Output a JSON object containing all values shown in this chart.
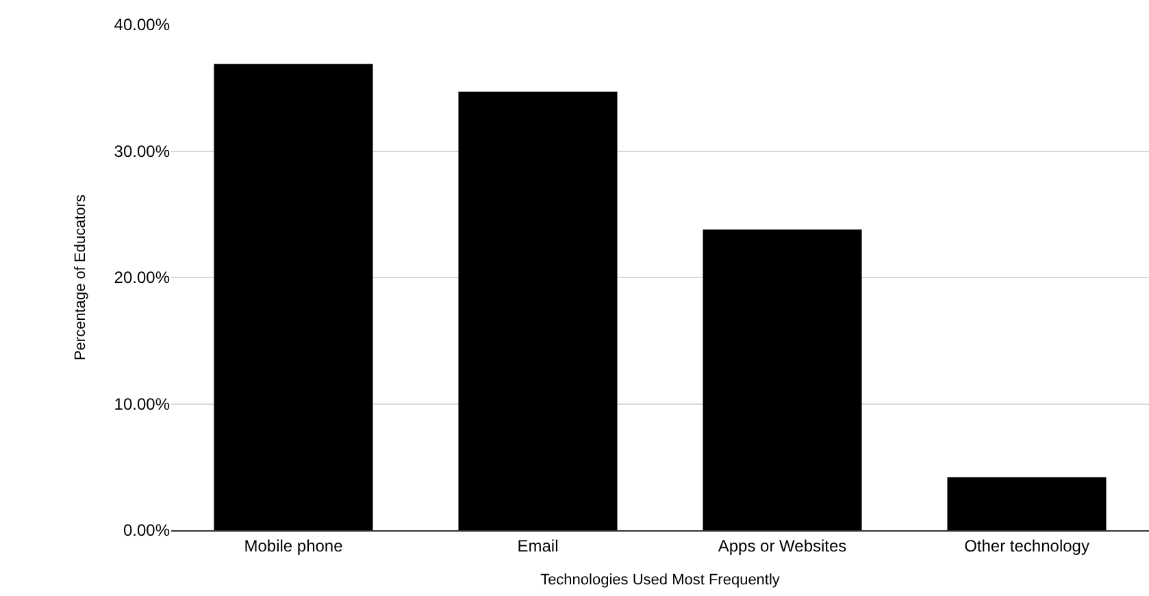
{
  "chart_data": {
    "type": "bar",
    "xlabel": "Technologies Used Most Frequently",
    "ylabel": "Percentage of Educators",
    "categories": [
      "Mobile phone",
      "Email",
      "Apps or Websites",
      "Other technology"
    ],
    "values": [
      36.9,
      34.7,
      23.8,
      4.2
    ],
    "color": "#000000",
    "ylim": [
      0,
      40
    ],
    "yticks": [
      {
        "value": 0,
        "label": "0.00%"
      },
      {
        "value": 10,
        "label": "10.00%"
      },
      {
        "value": 20,
        "label": "20.00%"
      },
      {
        "value": 30,
        "label": "30.00%"
      },
      {
        "value": 40,
        "label": "40.00%"
      }
    ],
    "grid": "y"
  }
}
